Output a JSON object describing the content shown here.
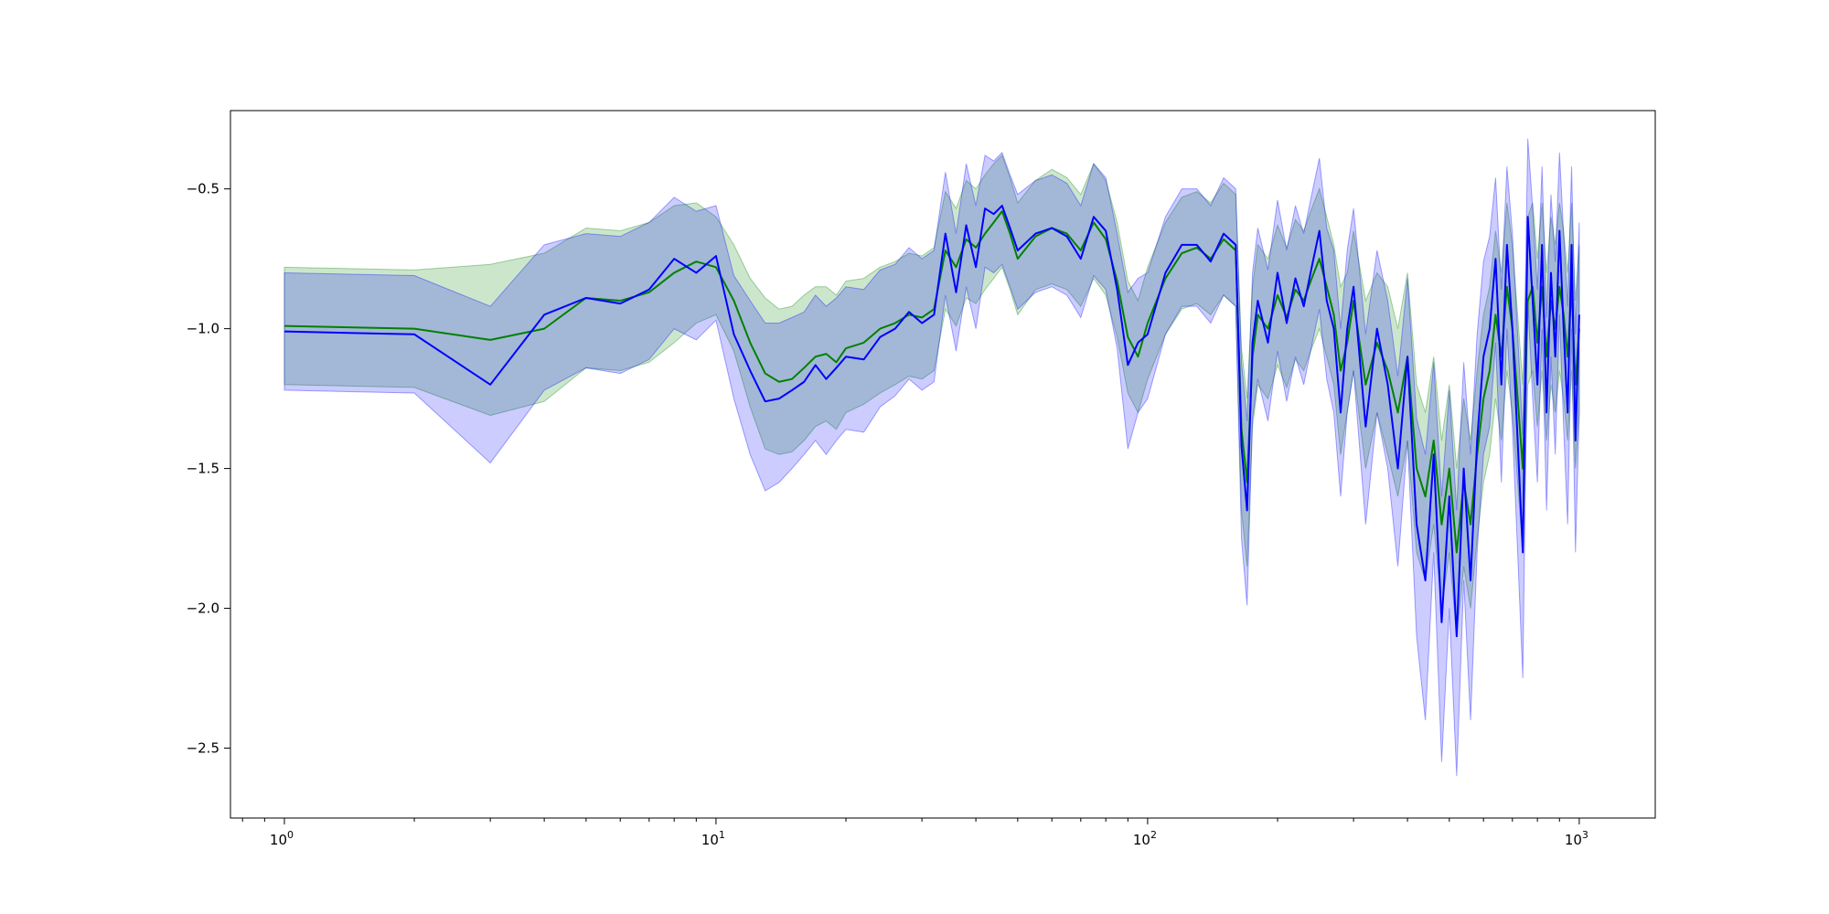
{
  "chart_data": {
    "type": "area",
    "title": "",
    "xlabel": "",
    "ylabel": "",
    "xscale": "log",
    "xlim": [
      0.75,
      1500
    ],
    "ylim": [
      -2.75,
      -0.22
    ],
    "grid": false,
    "legend": "none",
    "x_ticks": [
      {
        "base": "10",
        "exp": "0",
        "value": 1
      },
      {
        "base": "10",
        "exp": "1",
        "value": 10
      },
      {
        "base": "10",
        "exp": "2",
        "value": 100
      },
      {
        "base": "10",
        "exp": "3",
        "value": 1000
      }
    ],
    "y_ticks": [
      {
        "label": "−0.5",
        "value": -0.5
      },
      {
        "label": "−1.0",
        "value": -1.0
      },
      {
        "label": "−1.5",
        "value": -1.5
      },
      {
        "label": "−2.0",
        "value": -2.0
      },
      {
        "label": "−2.5",
        "value": -2.5
      }
    ],
    "series": [
      {
        "color": "#008000",
        "band_color": "#008000",
        "band_opacity": 0.2,
        "x": [
          1,
          2,
          3,
          4,
          5,
          6,
          7,
          8,
          9,
          10,
          11,
          12,
          13,
          14,
          15,
          16,
          17,
          18,
          19,
          20,
          22,
          24,
          26,
          28,
          30,
          32,
          34,
          36,
          38,
          40,
          42,
          44,
          46,
          48,
          50,
          55,
          60,
          65,
          70,
          75,
          80,
          85,
          90,
          95,
          100,
          110,
          120,
          130,
          140,
          150,
          160,
          165,
          170,
          175,
          180,
          190,
          200,
          210,
          220,
          230,
          240,
          250,
          260,
          270,
          280,
          290,
          300,
          320,
          340,
          360,
          380,
          400,
          420,
          440,
          460,
          480,
          500,
          520,
          540,
          560,
          580,
          600,
          620,
          640,
          660,
          680,
          700,
          720,
          740,
          760,
          780,
          800,
          820,
          840,
          860,
          880,
          900,
          920,
          940,
          960,
          980,
          1000
        ],
        "mean": [
          -0.99,
          -1.0,
          -1.04,
          -1.0,
          -0.89,
          -0.9,
          -0.87,
          -0.8,
          -0.76,
          -0.78,
          -0.9,
          -1.05,
          -1.16,
          -1.19,
          -1.18,
          -1.14,
          -1.1,
          -1.09,
          -1.12,
          -1.07,
          -1.05,
          -1.0,
          -0.98,
          -0.95,
          -0.96,
          -0.93,
          -0.72,
          -0.78,
          -0.68,
          -0.71,
          -0.66,
          -0.62,
          -0.58,
          -0.66,
          -0.75,
          -0.67,
          -0.64,
          -0.66,
          -0.72,
          -0.62,
          -0.68,
          -0.83,
          -1.03,
          -1.1,
          -0.98,
          -0.82,
          -0.73,
          -0.71,
          -0.75,
          -0.68,
          -0.72,
          -1.36,
          -1.55,
          -1.1,
          -0.95,
          -1.0,
          -0.88,
          -0.96,
          -0.86,
          -0.9,
          -0.82,
          -0.75,
          -0.85,
          -0.95,
          -1.15,
          -1.05,
          -0.9,
          -1.2,
          -1.05,
          -1.15,
          -1.3,
          -1.1,
          -1.5,
          -1.6,
          -1.4,
          -1.7,
          -1.5,
          -1.8,
          -1.55,
          -1.7,
          -1.45,
          -1.25,
          -1.15,
          -0.95,
          -1.1,
          -0.85,
          -1.0,
          -1.25,
          -1.5,
          -0.9,
          -0.85,
          -1.05,
          -0.85,
          -1.1,
          -0.9,
          -1.0,
          -0.85,
          -0.95,
          -1.1,
          -0.85,
          -1.2,
          -1.0
        ],
        "lower": [
          -1.2,
          -1.21,
          -1.31,
          -1.26,
          -1.14,
          -1.15,
          -1.12,
          -1.05,
          -0.98,
          -0.95,
          -1.08,
          -1.28,
          -1.43,
          -1.45,
          -1.44,
          -1.4,
          -1.35,
          -1.33,
          -1.36,
          -1.3,
          -1.27,
          -1.23,
          -1.2,
          -1.17,
          -1.18,
          -1.15,
          -0.93,
          -0.99,
          -0.89,
          -0.91,
          -0.86,
          -0.82,
          -0.78,
          -0.86,
          -0.95,
          -0.86,
          -0.84,
          -0.86,
          -0.92,
          -0.82,
          -0.88,
          -1.03,
          -1.23,
          -1.3,
          -1.18,
          -1.02,
          -0.93,
          -0.91,
          -0.95,
          -0.88,
          -0.92,
          -1.65,
          -1.85,
          -1.35,
          -1.2,
          -1.25,
          -1.13,
          -1.21,
          -1.11,
          -1.15,
          -1.07,
          -1.0,
          -1.1,
          -1.2,
          -1.45,
          -1.3,
          -1.15,
          -1.5,
          -1.3,
          -1.45,
          -1.6,
          -1.4,
          -1.8,
          -1.9,
          -1.7,
          -2.0,
          -1.8,
          -2.1,
          -1.85,
          -2.0,
          -1.75,
          -1.55,
          -1.45,
          -1.25,
          -1.4,
          -1.15,
          -1.3,
          -1.55,
          -1.8,
          -1.2,
          -1.15,
          -1.35,
          -1.15,
          -1.4,
          -1.2,
          -1.3,
          -1.15,
          -1.25,
          -1.4,
          -1.15,
          -1.5,
          -1.3
        ],
        "upper": [
          -0.78,
          -0.79,
          -0.77,
          -0.73,
          -0.64,
          -0.65,
          -0.62,
          -0.56,
          -0.55,
          -0.6,
          -0.7,
          -0.82,
          -0.89,
          -0.93,
          -0.92,
          -0.88,
          -0.85,
          -0.85,
          -0.88,
          -0.83,
          -0.82,
          -0.78,
          -0.76,
          -0.73,
          -0.74,
          -0.71,
          -0.51,
          -0.57,
          -0.47,
          -0.5,
          -0.45,
          -0.41,
          -0.38,
          -0.46,
          -0.55,
          -0.47,
          -0.43,
          -0.46,
          -0.52,
          -0.41,
          -0.47,
          -0.62,
          -0.83,
          -0.9,
          -0.78,
          -0.62,
          -0.53,
          -0.51,
          -0.55,
          -0.48,
          -0.52,
          -1.07,
          -1.25,
          -0.85,
          -0.7,
          -0.75,
          -0.63,
          -0.71,
          -0.61,
          -0.65,
          -0.57,
          -0.5,
          -0.6,
          -0.7,
          -0.85,
          -0.8,
          -0.65,
          -0.9,
          -0.8,
          -0.85,
          -1.0,
          -0.8,
          -1.2,
          -1.3,
          -1.1,
          -1.4,
          -1.2,
          -1.5,
          -1.25,
          -1.4,
          -1.15,
          -0.95,
          -0.85,
          -0.65,
          -0.8,
          -0.55,
          -0.7,
          -0.95,
          -1.2,
          -0.6,
          -0.55,
          -0.75,
          -0.55,
          -0.8,
          -0.6,
          -0.7,
          -0.55,
          -0.65,
          -0.8,
          -0.55,
          -0.9,
          -0.7
        ]
      },
      {
        "color": "#0000ff",
        "band_color": "#0000ff",
        "band_opacity": 0.2,
        "x": [
          1,
          2,
          3,
          4,
          5,
          6,
          7,
          8,
          9,
          10,
          11,
          12,
          13,
          14,
          15,
          16,
          17,
          18,
          19,
          20,
          22,
          24,
          26,
          28,
          30,
          32,
          34,
          36,
          38,
          40,
          42,
          44,
          46,
          48,
          50,
          55,
          60,
          65,
          70,
          75,
          80,
          85,
          90,
          95,
          100,
          110,
          120,
          130,
          140,
          150,
          160,
          165,
          170,
          175,
          180,
          190,
          200,
          210,
          220,
          230,
          240,
          250,
          260,
          270,
          280,
          290,
          300,
          320,
          340,
          360,
          380,
          400,
          420,
          440,
          460,
          480,
          500,
          520,
          540,
          560,
          580,
          600,
          620,
          640,
          660,
          680,
          700,
          720,
          740,
          760,
          780,
          800,
          820,
          840,
          860,
          880,
          900,
          920,
          940,
          960,
          980,
          1000
        ],
        "mean": [
          -1.01,
          -1.02,
          -1.2,
          -0.95,
          -0.89,
          -0.91,
          -0.86,
          -0.75,
          -0.8,
          -0.74,
          -1.02,
          -1.15,
          -1.26,
          -1.25,
          -1.22,
          -1.19,
          -1.13,
          -1.18,
          -1.14,
          -1.1,
          -1.11,
          -1.03,
          -1.0,
          -0.94,
          -0.98,
          -0.95,
          -0.66,
          -0.87,
          -0.63,
          -0.78,
          -0.57,
          -0.59,
          -0.56,
          -0.64,
          -0.72,
          -0.66,
          -0.64,
          -0.67,
          -0.75,
          -0.6,
          -0.65,
          -0.86,
          -1.13,
          -1.05,
          -1.02,
          -0.8,
          -0.7,
          -0.7,
          -0.76,
          -0.66,
          -0.7,
          -1.42,
          -1.65,
          -1.05,
          -0.9,
          -1.05,
          -0.8,
          -0.98,
          -0.82,
          -0.92,
          -0.78,
          -0.65,
          -0.9,
          -1.0,
          -1.3,
          -1.0,
          -0.85,
          -1.35,
          -1.0,
          -1.2,
          -1.5,
          -1.1,
          -1.7,
          -1.9,
          -1.45,
          -2.05,
          -1.6,
          -2.1,
          -1.5,
          -1.9,
          -1.4,
          -1.1,
          -1.0,
          -0.75,
          -1.2,
          -0.7,
          -1.0,
          -1.4,
          -1.8,
          -0.6,
          -0.9,
          -1.2,
          -0.7,
          -1.3,
          -0.8,
          -1.1,
          -0.65,
          -1.0,
          -1.3,
          -0.7,
          -1.4,
          -0.95
        ],
        "lower": [
          -1.22,
          -1.23,
          -1.48,
          -1.22,
          -1.14,
          -1.16,
          -1.11,
          -1.0,
          -1.04,
          -0.97,
          -1.25,
          -1.45,
          -1.58,
          -1.55,
          -1.5,
          -1.45,
          -1.4,
          -1.45,
          -1.4,
          -1.36,
          -1.37,
          -1.28,
          -1.24,
          -1.18,
          -1.22,
          -1.19,
          -0.88,
          -1.08,
          -0.85,
          -1.0,
          -0.78,
          -0.8,
          -0.77,
          -0.85,
          -0.93,
          -0.87,
          -0.85,
          -0.88,
          -0.96,
          -0.81,
          -0.86,
          -1.07,
          -1.43,
          -1.3,
          -1.25,
          -1.02,
          -0.92,
          -0.92,
          -0.98,
          -0.88,
          -0.92,
          -1.75,
          -1.99,
          -1.32,
          -1.18,
          -1.33,
          -1.08,
          -1.26,
          -1.1,
          -1.2,
          -1.06,
          -0.93,
          -1.18,
          -1.3,
          -1.6,
          -1.3,
          -1.15,
          -1.7,
          -1.3,
          -1.5,
          -1.85,
          -1.4,
          -2.1,
          -2.4,
          -1.8,
          -2.55,
          -2.0,
          -2.6,
          -1.9,
          -2.4,
          -1.8,
          -1.45,
          -1.35,
          -1.05,
          -1.55,
          -1.0,
          -1.35,
          -1.8,
          -2.25,
          -0.9,
          -1.25,
          -1.55,
          -1.0,
          -1.65,
          -1.1,
          -1.45,
          -0.95,
          -1.35,
          -1.7,
          -1.0,
          -1.8,
          -1.3
        ],
        "upper": [
          -0.8,
          -0.81,
          -0.92,
          -0.7,
          -0.66,
          -0.67,
          -0.62,
          -0.53,
          -0.58,
          -0.56,
          -0.81,
          -0.9,
          -0.98,
          -0.98,
          -0.96,
          -0.94,
          -0.88,
          -0.92,
          -0.89,
          -0.85,
          -0.86,
          -0.79,
          -0.77,
          -0.71,
          -0.75,
          -0.72,
          -0.44,
          -0.66,
          -0.41,
          -0.56,
          -0.38,
          -0.4,
          -0.37,
          -0.45,
          -0.52,
          -0.47,
          -0.45,
          -0.48,
          -0.56,
          -0.41,
          -0.46,
          -0.66,
          -0.87,
          -0.82,
          -0.8,
          -0.6,
          -0.5,
          -0.5,
          -0.56,
          -0.46,
          -0.5,
          -1.12,
          -1.33,
          -0.8,
          -0.64,
          -0.79,
          -0.54,
          -0.72,
          -0.56,
          -0.66,
          -0.52,
          -0.39,
          -0.64,
          -0.72,
          -1.0,
          -0.72,
          -0.57,
          -1.02,
          -0.72,
          -0.9,
          -1.17,
          -0.82,
          -1.32,
          -1.45,
          -1.12,
          -1.6,
          -1.22,
          -1.65,
          -1.12,
          -1.45,
          -1.02,
          -0.76,
          -0.67,
          -0.46,
          -0.86,
          -0.42,
          -0.66,
          -1.02,
          -1.38,
          -0.32,
          -0.57,
          -0.86,
          -0.42,
          -0.96,
          -0.52,
          -0.76,
          -0.37,
          -0.66,
          -0.92,
          -0.42,
          -1.02,
          -0.62
        ]
      }
    ]
  }
}
